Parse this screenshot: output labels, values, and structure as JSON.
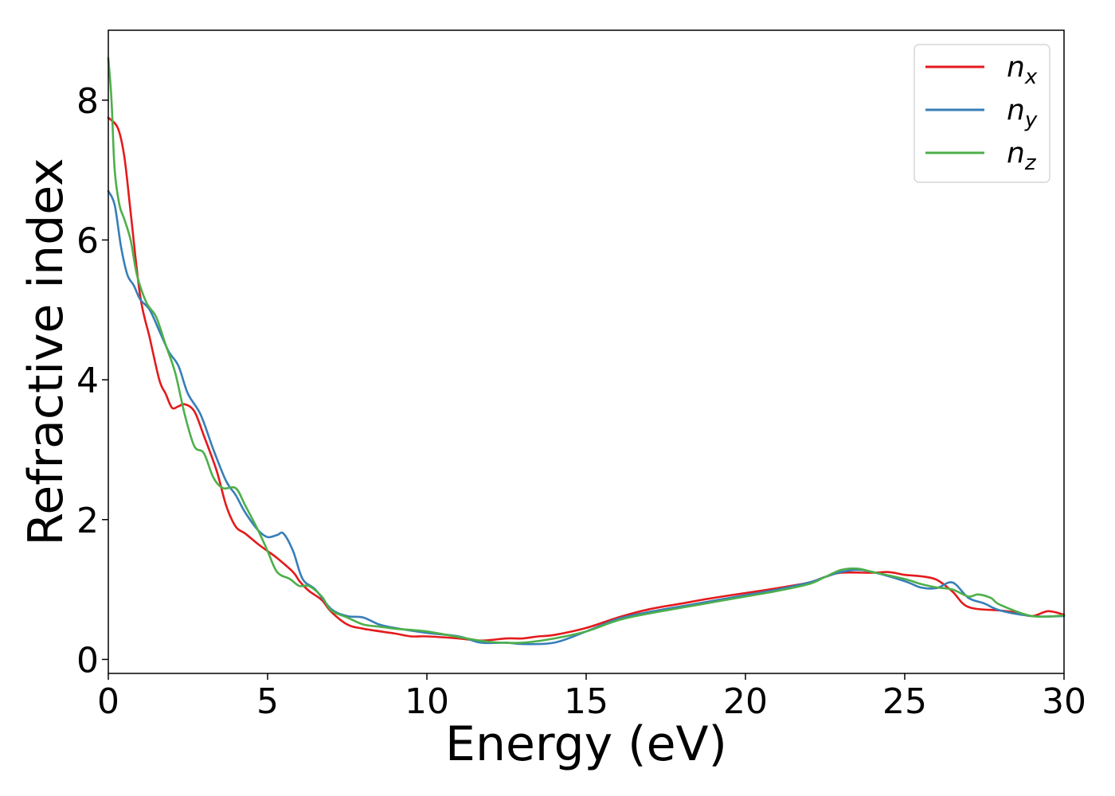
{
  "chart_data": {
    "type": "line",
    "xlabel": "Energy (eV)",
    "ylabel": "Refractive index",
    "xlim": [
      0,
      30
    ],
    "ylim": [
      -0.2,
      9.0
    ],
    "xticks": [
      "0",
      "5",
      "10",
      "15",
      "20",
      "25",
      "30"
    ],
    "yticks": [
      "0",
      "2",
      "4",
      "6",
      "8"
    ],
    "grid": false,
    "legend_position": "top-right",
    "series": [
      {
        "name": "n_x",
        "label_base": "n",
        "label_sub": "x",
        "color": "#e41a1c",
        "x": [
          0,
          0.3,
          0.5,
          0.7,
          1.0,
          1.3,
          1.6,
          1.8,
          2.0,
          2.2,
          2.4,
          2.7,
          3.0,
          3.4,
          3.7,
          4.0,
          4.3,
          4.7,
          5.0,
          5.3,
          5.8,
          6.0,
          6.3,
          6.7,
          7.0,
          7.5,
          8.0,
          9.0,
          9.5,
          10.0,
          11.0,
          11.7,
          12.5,
          13.0,
          13.5,
          14.0,
          15.0,
          16.0,
          17.0,
          18.0,
          19.0,
          20.0,
          21.0,
          22.0,
          22.5,
          23.0,
          24.0,
          24.5,
          25.0,
          25.5,
          26.0,
          26.5,
          27.0,
          28.0,
          28.5,
          29.0,
          29.5,
          30.0
        ],
        "y": [
          7.75,
          7.6,
          7.2,
          6.4,
          5.2,
          4.6,
          4.0,
          3.8,
          3.6,
          3.62,
          3.65,
          3.55,
          3.2,
          2.7,
          2.2,
          1.9,
          1.8,
          1.65,
          1.55,
          1.45,
          1.25,
          1.12,
          0.98,
          0.85,
          0.68,
          0.5,
          0.44,
          0.37,
          0.33,
          0.33,
          0.3,
          0.27,
          0.3,
          0.3,
          0.33,
          0.35,
          0.45,
          0.6,
          0.72,
          0.8,
          0.88,
          0.95,
          1.02,
          1.1,
          1.18,
          1.24,
          1.24,
          1.25,
          1.21,
          1.19,
          1.14,
          0.97,
          0.75,
          0.7,
          0.67,
          0.62,
          0.69,
          0.64
        ]
      },
      {
        "name": "n_y",
        "label_base": "n",
        "label_sub": "y",
        "color": "#377eb8",
        "x": [
          0,
          0.2,
          0.4,
          0.6,
          0.8,
          1.0,
          1.3,
          1.6,
          1.9,
          2.2,
          2.5,
          2.9,
          3.3,
          3.7,
          4.0,
          4.3,
          4.7,
          5.0,
          5.3,
          5.5,
          5.8,
          6.1,
          6.5,
          7.0,
          7.5,
          8.0,
          8.5,
          9.0,
          10.0,
          11.0,
          11.7,
          12.5,
          13.0,
          14.0,
          15.0,
          16.0,
          17.0,
          18.0,
          19.0,
          20.0,
          21.0,
          22.0,
          22.5,
          23.0,
          23.5,
          24.0,
          25.0,
          25.5,
          26.0,
          26.5,
          27.0,
          27.5,
          28.0,
          29.0,
          30.0
        ],
        "y": [
          6.7,
          6.5,
          5.9,
          5.5,
          5.35,
          5.15,
          5.0,
          4.7,
          4.4,
          4.2,
          3.8,
          3.5,
          3.0,
          2.55,
          2.35,
          2.1,
          1.85,
          1.75,
          1.78,
          1.8,
          1.55,
          1.15,
          1.0,
          0.72,
          0.62,
          0.6,
          0.5,
          0.45,
          0.38,
          0.33,
          0.24,
          0.24,
          0.22,
          0.24,
          0.4,
          0.58,
          0.68,
          0.76,
          0.84,
          0.92,
          1.0,
          1.1,
          1.18,
          1.25,
          1.28,
          1.25,
          1.12,
          1.03,
          1.02,
          1.1,
          0.88,
          0.8,
          0.7,
          0.62,
          0.62
        ]
      },
      {
        "name": "n_z",
        "label_base": "n",
        "label_sub": "z",
        "color": "#4daf4a",
        "x": [
          0,
          0.1,
          0.2,
          0.35,
          0.5,
          0.7,
          0.9,
          1.2,
          1.5,
          1.8,
          2.1,
          2.4,
          2.7,
          3.0,
          3.3,
          3.6,
          4.0,
          4.3,
          4.7,
          5.0,
          5.3,
          5.7,
          6.0,
          6.3,
          6.7,
          7.0,
          7.5,
          8.0,
          8.5,
          9.0,
          10.0,
          11.0,
          12.0,
          13.0,
          14.0,
          15.0,
          16.0,
          17.0,
          18.0,
          19.0,
          20.0,
          21.0,
          22.0,
          22.5,
          23.0,
          23.5,
          24.0,
          25.0,
          25.5,
          26.0,
          26.5,
          27.0,
          27.3,
          27.7,
          28.0,
          29.0,
          30.0
        ],
        "y": [
          8.6,
          8.0,
          7.0,
          6.5,
          6.3,
          6.0,
          5.5,
          5.1,
          4.9,
          4.5,
          4.1,
          3.5,
          3.05,
          2.95,
          2.6,
          2.45,
          2.45,
          2.2,
          1.85,
          1.55,
          1.25,
          1.15,
          1.05,
          1.05,
          0.9,
          0.7,
          0.6,
          0.5,
          0.47,
          0.44,
          0.4,
          0.32,
          0.25,
          0.24,
          0.3,
          0.4,
          0.56,
          0.66,
          0.74,
          0.82,
          0.9,
          0.98,
          1.08,
          1.18,
          1.28,
          1.3,
          1.25,
          1.15,
          1.08,
          1.03,
          1.0,
          0.9,
          0.93,
          0.88,
          0.78,
          0.62,
          0.63
        ]
      }
    ]
  }
}
